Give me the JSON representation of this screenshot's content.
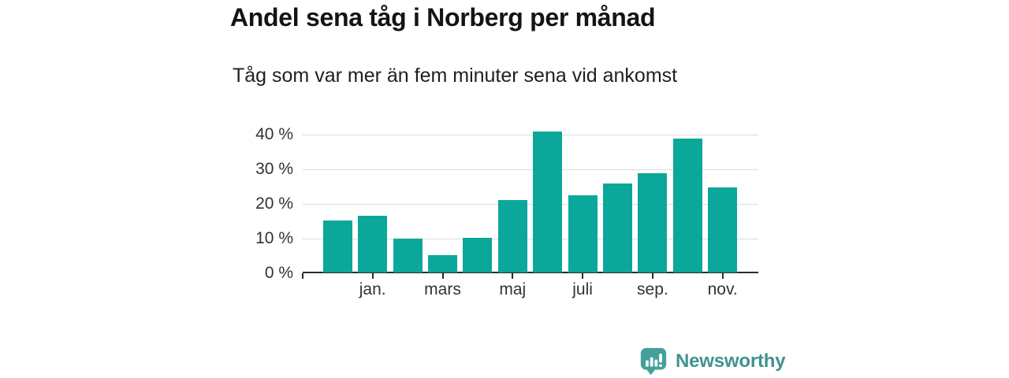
{
  "chart_data": {
    "type": "bar",
    "title": "Andel sena tåg i Norberg per månad",
    "subtitle": "Tåg som var mer än fem minuter sena vid ankomst",
    "categories": [
      "",
      "jan.",
      "",
      "mars",
      "",
      "maj",
      "",
      "juli",
      "",
      "sep.",
      "",
      "nov."
    ],
    "values": [
      15.1,
      16.3,
      9.7,
      5.1,
      10.0,
      21.0,
      40.7,
      22.3,
      25.7,
      28.7,
      38.7,
      24.6
    ],
    "unit": "%",
    "y_ticks": [
      {
        "value": 0,
        "label": "0 %"
      },
      {
        "value": 10,
        "label": "10 %"
      },
      {
        "value": 20,
        "label": "20 %"
      },
      {
        "value": 30,
        "label": "30 %"
      },
      {
        "value": 40,
        "label": "40 %"
      }
    ],
    "ylim": [
      0,
      42.5
    ],
    "grid": true,
    "legend_position": "none",
    "bar_color": "#0ba79a"
  },
  "colors": {
    "bar": "#0ba79a",
    "grid": "#dcdcdc",
    "axis": "#2b2b2b",
    "axis_text": "#333333",
    "title_text": "#141414"
  },
  "footer": {
    "logo_text": "Newsworthy",
    "logo_icon": "speech-bubble-bar-chart-icon",
    "logo_bubble_color": "#45a09a",
    "logo_text_color": "#3f938e"
  }
}
